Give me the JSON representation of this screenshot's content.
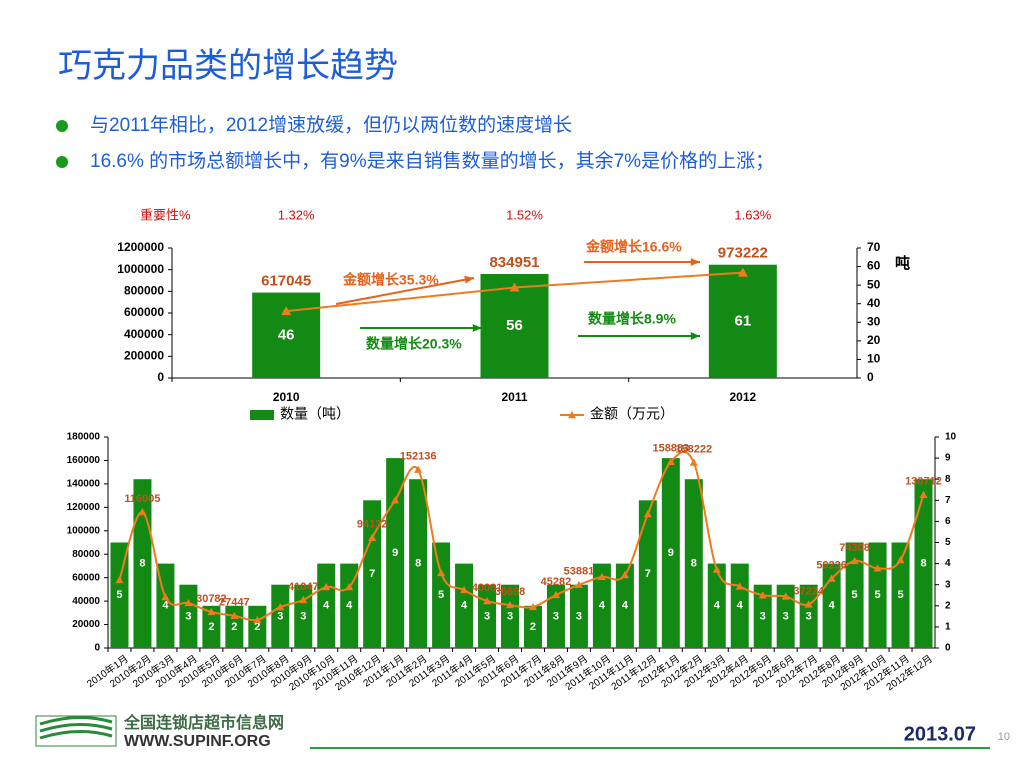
{
  "header": {
    "title": "巧克力品类的增长趋势",
    "bullets": [
      "与2011年相比，2012增速放缓，但仍以两位数的速度增长",
      "16.6% 的市场总额增长中，有9%是来自销售数量的增长，其余7%是价格的上涨；"
    ]
  },
  "chart_data": [
    {
      "type": "combo",
      "categories": [
        "2010",
        "2011",
        "2012"
      ],
      "importance_title": "重要性%",
      "importance_labels": [
        "1.32%",
        "1.52%",
        "1.63%"
      ],
      "y2label": "吨",
      "annotations": [
        "金额增长16.6%",
        "金额增长35.3%",
        "数量增长20.3%",
        "数量增长8.9%"
      ],
      "ylim": [
        0,
        1200000
      ],
      "yticks": [
        0,
        200000,
        400000,
        600000,
        800000,
        1000000,
        1200000
      ],
      "y2lim": [
        0,
        70
      ],
      "y2ticks": [
        0,
        10,
        20,
        30,
        40,
        50,
        60,
        70
      ],
      "legend": "bottom",
      "series": [
        {
          "name": "数量（吨）",
          "type": "bar",
          "axis": "y2",
          "color": "#138a13",
          "values": [
            46,
            56,
            61
          ]
        },
        {
          "name": "金额（万元）",
          "type": "line",
          "color": "#f07b1e",
          "values": [
            617045,
            834951,
            973222
          ]
        }
      ]
    },
    {
      "type": "combo",
      "categories": [
        "2010年1月",
        "2010年2月",
        "2010年3月",
        "2010年4月",
        "2010年5月",
        "2010年6月",
        "2010年7月",
        "2010年8月",
        "2010年9月",
        "2010年10月",
        "2010年11月",
        "2010年12月",
        "2011年1月",
        "2011年2月",
        "2011年3月",
        "2011年4月",
        "2011年5月",
        "2011年6月",
        "2011年7月",
        "2011年8月",
        "2011年9月",
        "2011年10月",
        "2011年11月",
        "2011年12月",
        "2012年1月",
        "2012年2月",
        "2012年3月",
        "2012年4月",
        "2012年5月",
        "2012年6月",
        "2012年7月",
        "2012年8月",
        "2012年9月",
        "2012年10月",
        "2012年11月",
        "2012年12月"
      ],
      "ylim": [
        0,
        180000
      ],
      "yticks": [
        0,
        20000,
        40000,
        60000,
        80000,
        100000,
        120000,
        140000,
        160000,
        180000
      ],
      "y2lim": [
        0,
        10
      ],
      "y2ticks": [
        0,
        1,
        2,
        3,
        4,
        5,
        6,
        7,
        8,
        9,
        10
      ],
      "series": [
        {
          "type": "bar",
          "axis": "y2",
          "color": "#138a13",
          "values": [
            5,
            8,
            4,
            3,
            2,
            2,
            2,
            3,
            3,
            4,
            4,
            7,
            9,
            8,
            5,
            4,
            3,
            3,
            2,
            3,
            3,
            4,
            4,
            7,
            9,
            8,
            4,
            4,
            3,
            3,
            3,
            4,
            5,
            5,
            5,
            8
          ]
        },
        {
          "type": "line",
          "color": "#f07b1e",
          "values": [
            58000,
            116005,
            43500,
            38400,
            30782,
            27447,
            24000,
            34900,
            41047,
            52000,
            52000,
            94132,
            126000,
            152136,
            64000,
            49500,
            40091,
            36698,
            35000,
            45282,
            53881,
            60700,
            62300,
            114300,
            158883,
            158222,
            66905,
            52524,
            45000,
            44000,
            37224,
            59236,
            74308,
            68000,
            75000,
            130712
          ],
          "value_labels": [
            null,
            "116005",
            null,
            null,
            "30782",
            "27447",
            null,
            null,
            "41047",
            null,
            null,
            "94132",
            null,
            "152136",
            null,
            null,
            "40091",
            "36698",
            null,
            "45282",
            "53881",
            null,
            null,
            null,
            "158883",
            "158222",
            null,
            null,
            null,
            null,
            "37224",
            "59236",
            "74308",
            null,
            null,
            "130712"
          ]
        }
      ]
    }
  ],
  "footer": {
    "site_name": "全国连锁店超市信息网",
    "url": "WWW.SUPINF.ORG",
    "date": "2013.07",
    "page": "10"
  }
}
